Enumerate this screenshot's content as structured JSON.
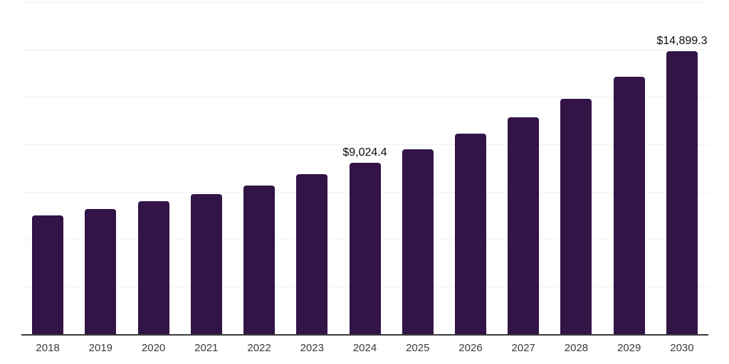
{
  "chart_data": {
    "type": "bar",
    "title": "",
    "xlabel": "",
    "ylabel": "",
    "categories": [
      "2018",
      "2019",
      "2020",
      "2021",
      "2022",
      "2023",
      "2024",
      "2025",
      "2026",
      "2027",
      "2028",
      "2029",
      "2030"
    ],
    "values": [
      6250,
      6600,
      7000,
      7380,
      7830,
      8450,
      9024.4,
      9740,
      10560,
      11430,
      12400,
      13560,
      14899.3
    ],
    "data_labels": {
      "2024": "$9,024.4",
      "2030": "$14,899.3"
    },
    "ylim": [
      0,
      17500
    ],
    "gridline_step": 2500,
    "grid": "horizontal",
    "legend": "none",
    "colors": {
      "bar": "#321447",
      "axis_line": "#3a3a3a",
      "gridline": "#f0f0f2",
      "tick_label": "#3a3a3a",
      "data_label": "#0a0a0a"
    }
  }
}
